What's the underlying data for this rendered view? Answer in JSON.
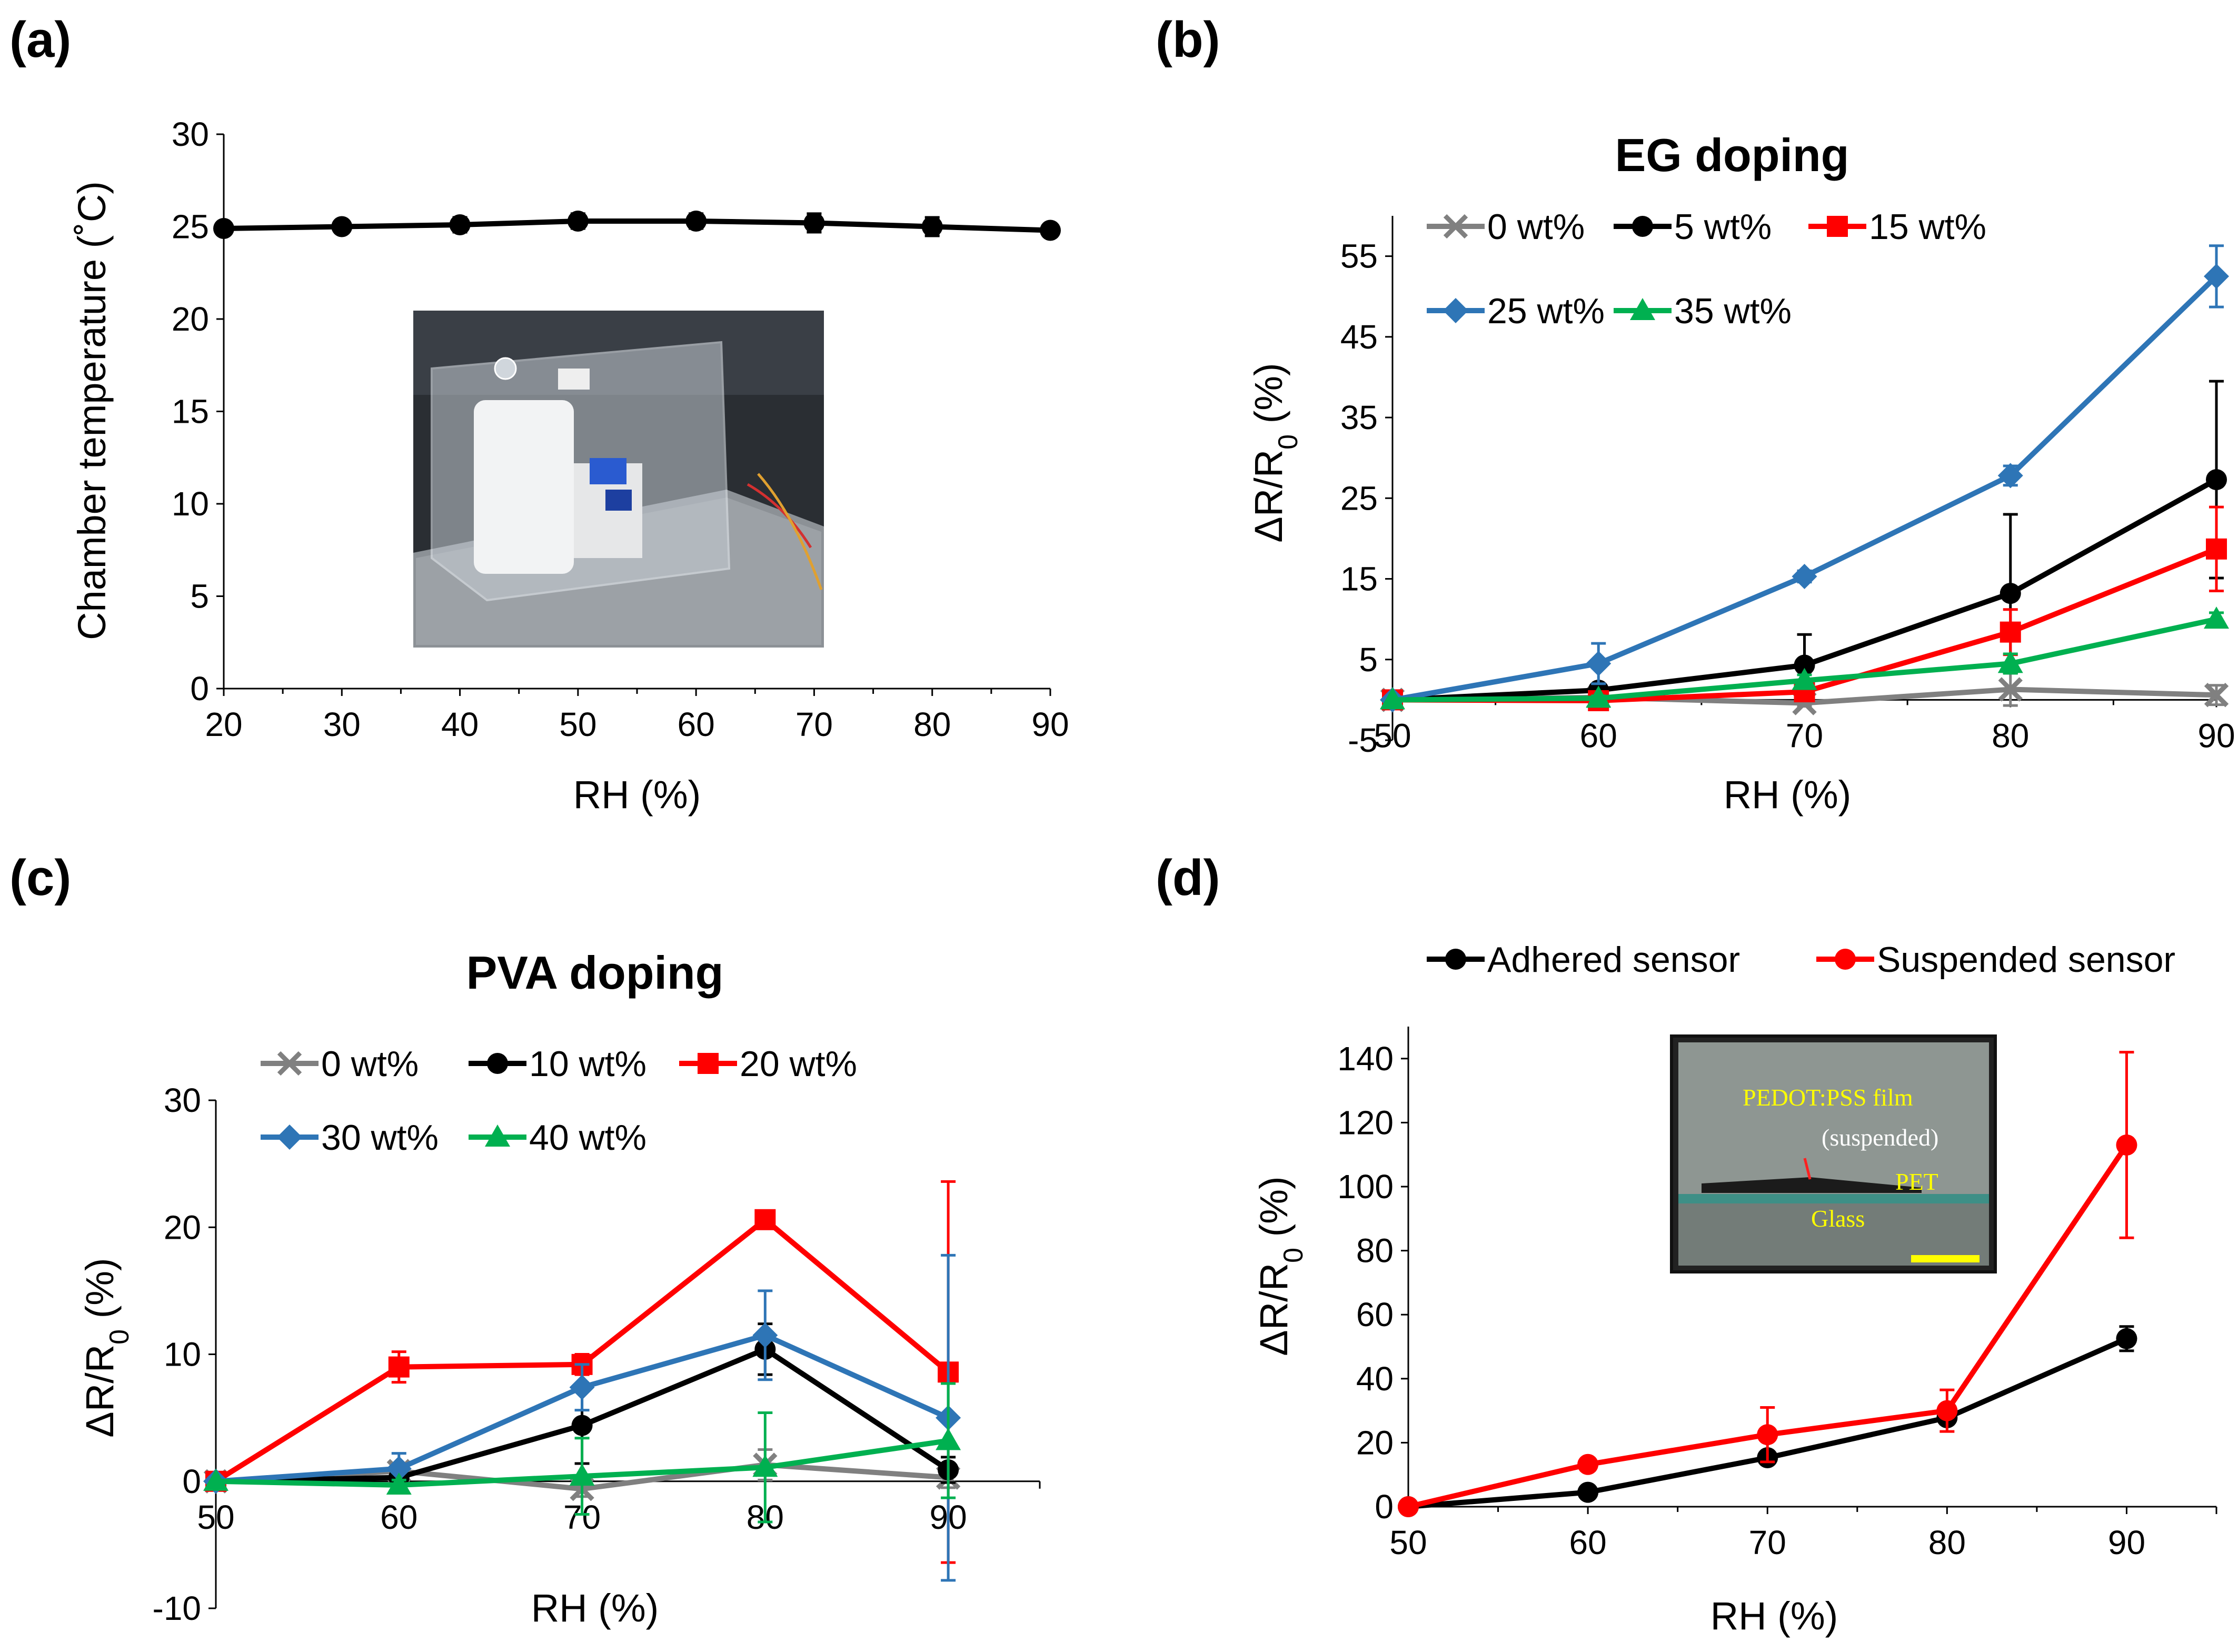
{
  "figure": {
    "panels": [
      {
        "key": "a",
        "label": "(a)"
      },
      {
        "key": "b",
        "label": "(b)"
      },
      {
        "key": "c",
        "label": "(c)"
      },
      {
        "key": "d",
        "label": "(d)"
      }
    ]
  },
  "colors": {
    "gray": "#808080",
    "black": "#000000",
    "red": "#ff0000",
    "blue": "#2e75b6",
    "green": "#00b050",
    "yellow": "#ffff00"
  },
  "photos": {
    "chamber": {
      "description_icon": "chamber-photo-icon"
    },
    "film": {
      "labels": [
        "PEDOT:PSS film",
        "(suspended)",
        "PET",
        "Glass"
      ]
    }
  },
  "chart_data": [
    {
      "key": "a",
      "type": "line",
      "title": "",
      "xlabel": "RH (%)",
      "ylabel": "Chamber temperature (˚C)",
      "xlim": [
        20,
        90
      ],
      "ylim": [
        0,
        30
      ],
      "xticks": [
        20,
        30,
        40,
        50,
        60,
        70,
        80,
        90
      ],
      "yticks": [
        0,
        5,
        10,
        15,
        20,
        25,
        30
      ],
      "legend": [],
      "series": [
        {
          "name": "Chamber temperature",
          "color": "#000000",
          "marker": "circle",
          "x": [
            20,
            30,
            40,
            50,
            60,
            70,
            80,
            90
          ],
          "y": [
            24.9,
            25.0,
            25.1,
            25.3,
            25.3,
            25.2,
            25.0,
            24.8
          ],
          "err": [
            0.3,
            0.3,
            0.4,
            0.4,
            0.4,
            0.5,
            0.5,
            0.3
          ]
        }
      ]
    },
    {
      "key": "b",
      "type": "line",
      "title": "EG doping",
      "xlabel": "RH (%)",
      "ylabel": "ΔR/R0 (%)",
      "xlim": [
        50,
        90
      ],
      "ylim": [
        -5,
        60
      ],
      "xticks": [
        50,
        60,
        70,
        80,
        90
      ],
      "yticks": [
        -5,
        5,
        15,
        25,
        35,
        45,
        55
      ],
      "series": [
        {
          "name": "0 wt%",
          "color": "#808080",
          "marker": "x",
          "x": [
            50,
            60,
            70,
            80,
            90
          ],
          "y": [
            0,
            0.3,
            -0.4,
            1.3,
            0.6
          ],
          "err": [
            0,
            0.3,
            0.4,
            2.0,
            1.2
          ]
        },
        {
          "name": "5 wt%",
          "color": "#000000",
          "marker": "circle",
          "x": [
            50,
            60,
            70,
            80,
            90
          ],
          "y": [
            0,
            1.2,
            4.3,
            13.2,
            27.3
          ],
          "err": [
            0,
            0.3,
            3.8,
            9.8,
            12.2
          ]
        },
        {
          "name": "15 wt%",
          "color": "#ff0000",
          "marker": "square",
          "x": [
            50,
            60,
            70,
            80,
            90
          ],
          "y": [
            0,
            -0.1,
            1.0,
            8.4,
            18.7
          ],
          "err": [
            0,
            0.3,
            0.5,
            2.8,
            5.2
          ]
        },
        {
          "name": "25 wt%",
          "color": "#2e75b6",
          "marker": "diamond",
          "x": [
            50,
            60,
            70,
            80,
            90
          ],
          "y": [
            0,
            4.5,
            15.3,
            27.8,
            52.5
          ],
          "err": [
            0,
            2.5,
            0.7,
            1.2,
            3.8
          ]
        },
        {
          "name": "35 wt%",
          "color": "#00b050",
          "marker": "triangle",
          "x": [
            50,
            60,
            70,
            80,
            90
          ],
          "y": [
            0,
            0.2,
            2.4,
            4.5,
            10.0
          ],
          "err": [
            0,
            0.3,
            0.7,
            1.2,
            0.8
          ]
        }
      ]
    },
    {
      "key": "c",
      "type": "line",
      "title": "PVA doping",
      "xlabel": "RH (%)",
      "ylabel": "ΔR/R0 (%)",
      "xlim": [
        50,
        95
      ],
      "ylim": [
        -10,
        30
      ],
      "xticks": [
        50,
        60,
        70,
        80,
        90
      ],
      "yticks": [
        -10,
        0,
        10,
        20,
        30
      ],
      "series": [
        {
          "name": "0 wt%",
          "color": "#808080",
          "marker": "x",
          "x": [
            50,
            60,
            70,
            80,
            90
          ],
          "y": [
            0,
            0.8,
            -0.6,
            1.3,
            0.3
          ],
          "err": [
            0,
            0.4,
            0.6,
            1.2,
            0.8
          ]
        },
        {
          "name": "10 wt%",
          "color": "#000000",
          "marker": "circle",
          "x": [
            50,
            60,
            70,
            80,
            90
          ],
          "y": [
            0,
            0.3,
            4.4,
            10.4,
            0.9
          ],
          "err": [
            0,
            0.5,
            3.0,
            2.0,
            1.0
          ]
        },
        {
          "name": "20 wt%",
          "color": "#ff0000",
          "marker": "square",
          "x": [
            50,
            60,
            70,
            80,
            90
          ],
          "y": [
            0,
            9.0,
            9.2,
            20.6,
            8.6
          ],
          "err": [
            0,
            1.2,
            0.8,
            0.5,
            15.0
          ]
        },
        {
          "name": "30 wt%",
          "color": "#2e75b6",
          "marker": "diamond",
          "x": [
            50,
            60,
            70,
            80,
            90
          ],
          "y": [
            0,
            1.0,
            7.4,
            11.5,
            5.0
          ],
          "err": [
            0,
            1.2,
            1.8,
            3.5,
            12.8
          ]
        },
        {
          "name": "40 wt%",
          "color": "#00b050",
          "marker": "triangle",
          "x": [
            50,
            60,
            70,
            80,
            90
          ],
          "y": [
            0,
            -0.3,
            0.4,
            1.1,
            3.2
          ],
          "err": [
            0,
            0.4,
            3.0,
            4.3,
            4.5
          ]
        }
      ]
    },
    {
      "key": "d",
      "type": "line",
      "title": "",
      "xlabel": "RH (%)",
      "ylabel": "ΔR/R0 (%)",
      "xlim": [
        50,
        95
      ],
      "ylim": [
        0,
        150
      ],
      "xticks": [
        50,
        60,
        70,
        80,
        90
      ],
      "yticks": [
        0,
        20,
        40,
        60,
        80,
        100,
        120,
        140
      ],
      "series": [
        {
          "name": "Adhered sensor",
          "color": "#000000",
          "marker": "circle",
          "x": [
            50,
            60,
            70,
            80,
            90
          ],
          "y": [
            0,
            4.5,
            15.3,
            27.8,
            52.5
          ],
          "err": [
            0,
            1.0,
            1.0,
            1.5,
            3.8
          ]
        },
        {
          "name": "Suspended sensor",
          "color": "#ff0000",
          "marker": "circle",
          "x": [
            50,
            60,
            70,
            80,
            90
          ],
          "y": [
            0,
            13.2,
            22.5,
            30.0,
            113.0
          ],
          "err": [
            0,
            1.5,
            8.5,
            6.5,
            29.0
          ]
        }
      ]
    }
  ]
}
